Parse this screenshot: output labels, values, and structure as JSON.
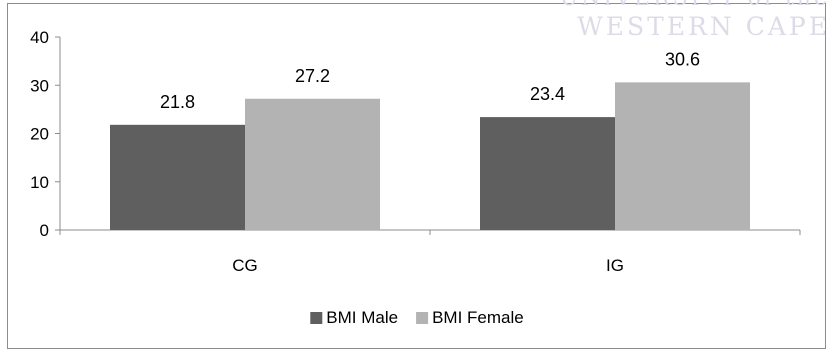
{
  "watermark": {
    "line1": "UNIVERSITY of the",
    "line2": "WESTERN CAPE"
  },
  "chart_data": {
    "type": "bar",
    "categories": [
      "CG",
      "IG"
    ],
    "series": [
      {
        "name": "BMI Male",
        "values": [
          21.8,
          23.4
        ],
        "color": "#5f5f5f"
      },
      {
        "name": "BMI Female",
        "values": [
          27.2,
          30.6
        ],
        "color": "#b3b3b3"
      }
    ],
    "yticks": [
      "0",
      "10",
      "20",
      "30",
      "40"
    ],
    "ylim": [
      0,
      40
    ],
    "legend_position": "bottom",
    "grid": false,
    "data_labels": true
  }
}
